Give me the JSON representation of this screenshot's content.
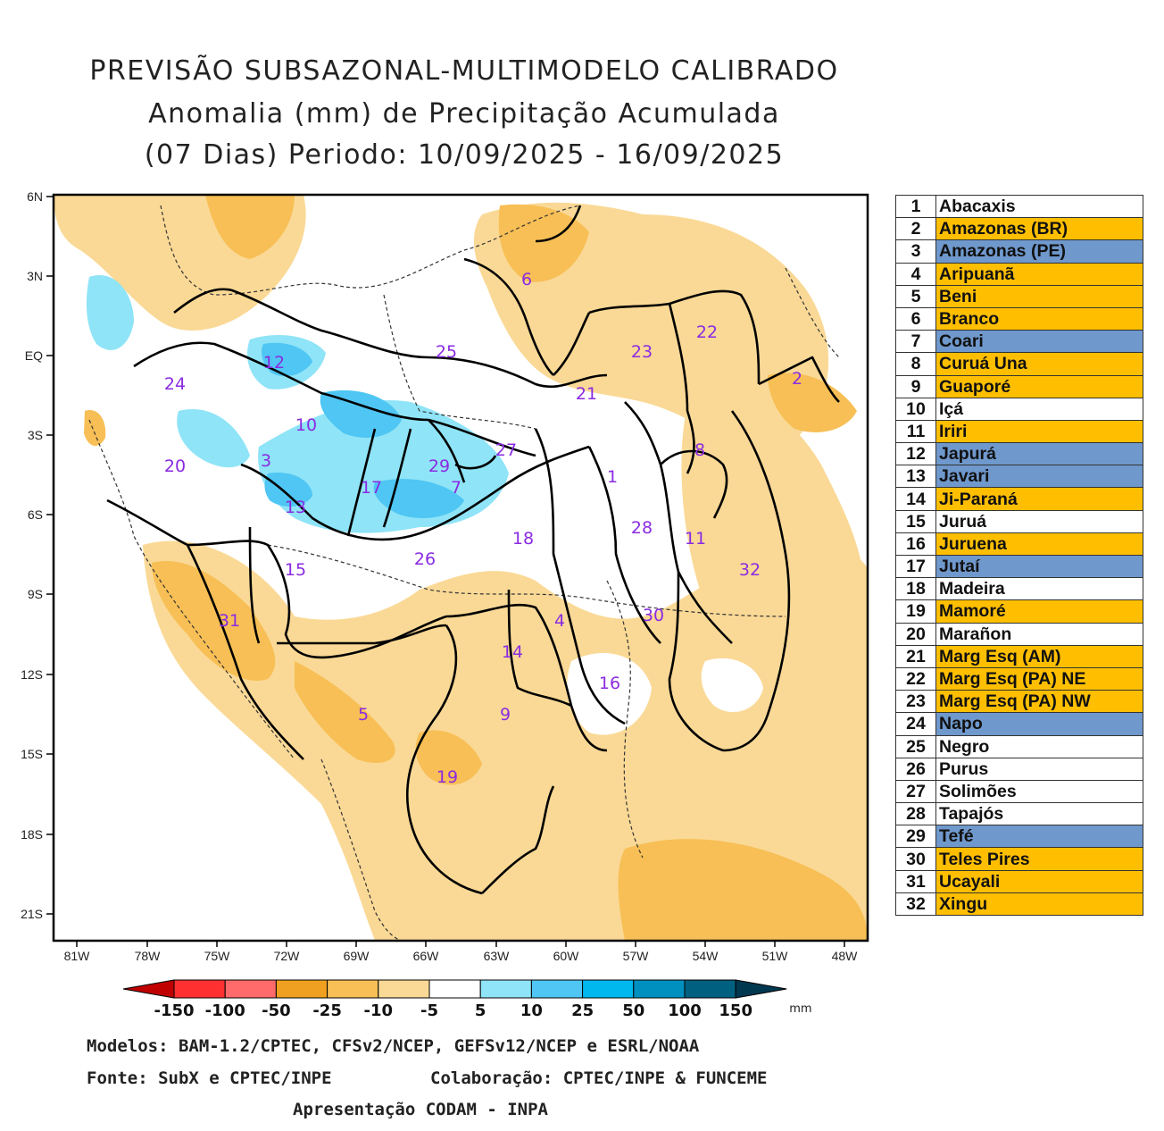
{
  "title": {
    "line1": "PREVISÃO SUBSAZONAL-MULTIMODELO CALIBRADO",
    "line2": "Anomalia (mm) de Precipitação Acumulada",
    "line3": "(07 Dias) Periodo: 10/09/2025 - 16/09/2025"
  },
  "axes": {
    "lat_labels": [
      "6N",
      "3N",
      "EQ",
      "3S",
      "6S",
      "9S",
      "12S",
      "15S",
      "18S",
      "21S"
    ],
    "lon_labels": [
      "81W",
      "78W",
      "75W",
      "72W",
      "69W",
      "66W",
      "63W",
      "60W",
      "57W",
      "54W",
      "51W",
      "48W"
    ]
  },
  "colorbar": {
    "labels": [
      "-150",
      "-100",
      "-50",
      "-25",
      "-10",
      "-5",
      "5",
      "10",
      "25",
      "50",
      "100",
      "150"
    ],
    "unit": "mm",
    "colors": [
      "#c00000",
      "#ff3030",
      "#ff6a6a",
      "#f0a020",
      "#f7bf55",
      "#fad996",
      "#ffffff",
      "#8fe4f7",
      "#4fc6f3",
      "#00b8ee",
      "#0090c0",
      "#006080",
      "#003850"
    ]
  },
  "basin_labels": [
    {
      "num": "1"
    },
    {
      "num": "2"
    },
    {
      "num": "3"
    },
    {
      "num": "4"
    },
    {
      "num": "5"
    },
    {
      "num": "6"
    },
    {
      "num": "7"
    },
    {
      "num": "8"
    },
    {
      "num": "9"
    },
    {
      "num": "10"
    },
    {
      "num": "11"
    },
    {
      "num": "12"
    },
    {
      "num": "13"
    },
    {
      "num": "14"
    },
    {
      "num": "15"
    },
    {
      "num": "16"
    },
    {
      "num": "17"
    },
    {
      "num": "18"
    },
    {
      "num": "19"
    },
    {
      "num": "20"
    },
    {
      "num": "21"
    },
    {
      "num": "22"
    },
    {
      "num": "23"
    },
    {
      "num": "24"
    },
    {
      "num": "25"
    },
    {
      "num": "26"
    },
    {
      "num": "27"
    },
    {
      "num": "28"
    },
    {
      "num": "29"
    },
    {
      "num": "30"
    },
    {
      "num": "31"
    },
    {
      "num": "32"
    }
  ],
  "legend": [
    {
      "num": "1",
      "name": "Abacaxis",
      "category": "neutral",
      "color": "#ffffff"
    },
    {
      "num": "2",
      "name": "Amazonas (BR)",
      "category": "below",
      "color": "#ffbf00"
    },
    {
      "num": "3",
      "name": "Amazonas (PE)",
      "category": "above",
      "color": "#6f98cc"
    },
    {
      "num": "4",
      "name": "Aripuanã",
      "category": "below",
      "color": "#ffbf00"
    },
    {
      "num": "5",
      "name": "Beni",
      "category": "below",
      "color": "#ffbf00"
    },
    {
      "num": "6",
      "name": "Branco",
      "category": "below",
      "color": "#ffbf00"
    },
    {
      "num": "7",
      "name": "Coari",
      "category": "above",
      "color": "#6f98cc"
    },
    {
      "num": "8",
      "name": "Curuá Una",
      "category": "below",
      "color": "#ffbf00"
    },
    {
      "num": "9",
      "name": "Guaporé",
      "category": "below",
      "color": "#ffbf00"
    },
    {
      "num": "10",
      "name": "Içá",
      "category": "neutral",
      "color": "#ffffff"
    },
    {
      "num": "11",
      "name": "Iriri",
      "category": "below",
      "color": "#ffbf00"
    },
    {
      "num": "12",
      "name": "Japurá",
      "category": "above",
      "color": "#6f98cc"
    },
    {
      "num": "13",
      "name": "Javari",
      "category": "above",
      "color": "#6f98cc"
    },
    {
      "num": "14",
      "name": "Ji-Paraná",
      "category": "below",
      "color": "#ffbf00"
    },
    {
      "num": "15",
      "name": "Juruá",
      "category": "neutral",
      "color": "#ffffff"
    },
    {
      "num": "16",
      "name": "Juruena",
      "category": "below",
      "color": "#ffbf00"
    },
    {
      "num": "17",
      "name": "Jutaí",
      "category": "above",
      "color": "#6f98cc"
    },
    {
      "num": "18",
      "name": "Madeira",
      "category": "neutral",
      "color": "#ffffff"
    },
    {
      "num": "19",
      "name": "Mamoré",
      "category": "below",
      "color": "#ffbf00"
    },
    {
      "num": "20",
      "name": "Marañon",
      "category": "neutral",
      "color": "#ffffff"
    },
    {
      "num": "21",
      "name": "Marg Esq (AM)",
      "category": "below",
      "color": "#ffbf00"
    },
    {
      "num": "22",
      "name": "Marg Esq (PA) NE",
      "category": "below",
      "color": "#ffbf00"
    },
    {
      "num": "23",
      "name": "Marg Esq (PA) NW",
      "category": "below",
      "color": "#ffbf00"
    },
    {
      "num": "24",
      "name": "Napo",
      "category": "above",
      "color": "#6f98cc"
    },
    {
      "num": "25",
      "name": "Negro",
      "category": "neutral",
      "color": "#ffffff"
    },
    {
      "num": "26",
      "name": "Purus",
      "category": "neutral",
      "color": "#ffffff"
    },
    {
      "num": "27",
      "name": "Solimões",
      "category": "neutral",
      "color": "#ffffff"
    },
    {
      "num": "28",
      "name": "Tapajós",
      "category": "neutral",
      "color": "#ffffff"
    },
    {
      "num": "29",
      "name": "Tefé",
      "category": "above",
      "color": "#6f98cc"
    },
    {
      "num": "30",
      "name": "Teles Pires",
      "category": "below",
      "color": "#ffbf00"
    },
    {
      "num": "31",
      "name": "Ucayali",
      "category": "below",
      "color": "#ffbf00"
    },
    {
      "num": "32",
      "name": "Xingu",
      "category": "below",
      "color": "#ffbf00"
    }
  ],
  "footer": {
    "models": "Modelos: BAM-1.2/CPTEC, CFSv2/NCEP, GEFSv12/NCEP e ESRL/NOAA",
    "source": "Fonte: SubX e CPTEC/INPE",
    "collab": "Colaboração: CPTEC/INPE & FUNCEME",
    "presentation": "Apresentação CODAM - INPA"
  }
}
